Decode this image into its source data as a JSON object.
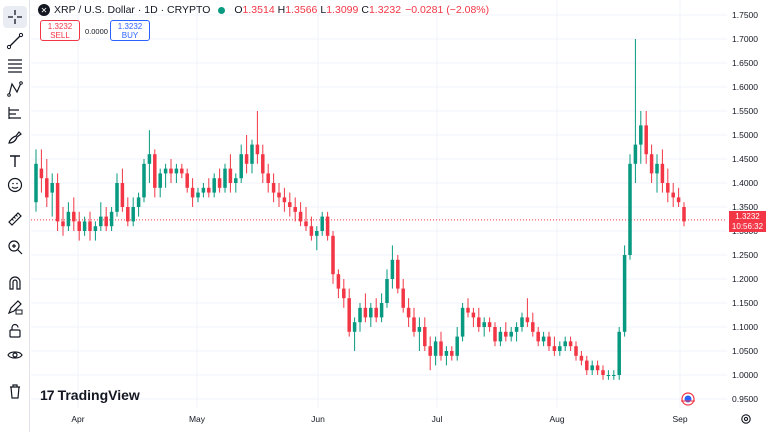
{
  "symbol": {
    "icon": "xrp-icon",
    "title": "XRP / U.S. Dollar · 1D · CRYPTO",
    "market_status": "open"
  },
  "ohlc": {
    "open_label": "O",
    "open": "1.3514",
    "high_label": "H",
    "high": "1.3566",
    "low_label": "L",
    "low": "1.3099",
    "close_label": "C",
    "close": "1.3232",
    "change": "−0.0281 (−2.08%)"
  },
  "trade": {
    "sell_price": "1.3232",
    "sell_label": "SELL",
    "spread": "0.0000",
    "buy_price": "1.3232",
    "buy_label": "BUY"
  },
  "price_tag": {
    "price": "1.3232",
    "countdown": "10:56:32"
  },
  "branding": {
    "name": "TradingView"
  },
  "colors": {
    "up": "#089981",
    "down": "#f23645",
    "grid": "#f0f3fa",
    "last_price_line": "#f23645"
  },
  "toolbar": [
    "crosshair-icon",
    "trend-line-icon",
    "fib-icon",
    "pattern-icon",
    "measure-lines-icon",
    "brush-icon",
    "text-icon",
    "emoji-icon",
    "ruler-icon",
    "zoom-in-icon",
    "magnet-icon",
    "lock-pencil-icon",
    "lock-icon",
    "eye-icon",
    "trash-icon"
  ],
  "chart_data": {
    "type": "candlestick",
    "y_ticks": [
      "1.7500",
      "1.7000",
      "1.6500",
      "1.6000",
      "1.5500",
      "1.5000",
      "1.4500",
      "1.4000",
      "1.3500",
      "1.3000",
      "1.2500",
      "1.2000",
      "1.1500",
      "1.1000",
      "1.0500",
      "1.0000",
      "0.9500"
    ],
    "x_ticks": [
      "Apr",
      "May",
      "Jun",
      "Jul",
      "Aug",
      "Sep"
    ],
    "ylim": [
      0.94,
      1.76
    ],
    "last_price": 1.3232,
    "grid": true,
    "candles": [
      {
        "o": 1.36,
        "h": 1.47,
        "l": 1.34,
        "c": 1.44
      },
      {
        "o": 1.43,
        "h": 1.47,
        "l": 1.38,
        "c": 1.41
      },
      {
        "o": 1.41,
        "h": 1.45,
        "l": 1.35,
        "c": 1.37
      },
      {
        "o": 1.38,
        "h": 1.42,
        "l": 1.33,
        "c": 1.4
      },
      {
        "o": 1.4,
        "h": 1.42,
        "l": 1.3,
        "c": 1.32
      },
      {
        "o": 1.32,
        "h": 1.35,
        "l": 1.29,
        "c": 1.31
      },
      {
        "o": 1.31,
        "h": 1.36,
        "l": 1.3,
        "c": 1.34
      },
      {
        "o": 1.34,
        "h": 1.37,
        "l": 1.3,
        "c": 1.32
      },
      {
        "o": 1.32,
        "h": 1.34,
        "l": 1.28,
        "c": 1.3
      },
      {
        "o": 1.3,
        "h": 1.33,
        "l": 1.29,
        "c": 1.32
      },
      {
        "o": 1.32,
        "h": 1.34,
        "l": 1.28,
        "c": 1.3
      },
      {
        "o": 1.3,
        "h": 1.32,
        "l": 1.28,
        "c": 1.31
      },
      {
        "o": 1.31,
        "h": 1.36,
        "l": 1.3,
        "c": 1.33
      },
      {
        "o": 1.33,
        "h": 1.35,
        "l": 1.3,
        "c": 1.31
      },
      {
        "o": 1.31,
        "h": 1.35,
        "l": 1.3,
        "c": 1.34
      },
      {
        "o": 1.34,
        "h": 1.42,
        "l": 1.33,
        "c": 1.4
      },
      {
        "o": 1.4,
        "h": 1.43,
        "l": 1.34,
        "c": 1.35
      },
      {
        "o": 1.35,
        "h": 1.37,
        "l": 1.31,
        "c": 1.32
      },
      {
        "o": 1.32,
        "h": 1.37,
        "l": 1.31,
        "c": 1.35
      },
      {
        "o": 1.35,
        "h": 1.38,
        "l": 1.33,
        "c": 1.37
      },
      {
        "o": 1.37,
        "h": 1.45,
        "l": 1.36,
        "c": 1.44
      },
      {
        "o": 1.44,
        "h": 1.51,
        "l": 1.4,
        "c": 1.46
      },
      {
        "o": 1.46,
        "h": 1.47,
        "l": 1.37,
        "c": 1.39
      },
      {
        "o": 1.39,
        "h": 1.43,
        "l": 1.37,
        "c": 1.42
      },
      {
        "o": 1.42,
        "h": 1.44,
        "l": 1.39,
        "c": 1.43
      },
      {
        "o": 1.43,
        "h": 1.45,
        "l": 1.4,
        "c": 1.42
      },
      {
        "o": 1.42,
        "h": 1.44,
        "l": 1.4,
        "c": 1.43
      },
      {
        "o": 1.43,
        "h": 1.44,
        "l": 1.41,
        "c": 1.42
      },
      {
        "o": 1.42,
        "h": 1.43,
        "l": 1.38,
        "c": 1.39
      },
      {
        "o": 1.39,
        "h": 1.41,
        "l": 1.35,
        "c": 1.37
      },
      {
        "o": 1.37,
        "h": 1.39,
        "l": 1.36,
        "c": 1.38
      },
      {
        "o": 1.38,
        "h": 1.4,
        "l": 1.37,
        "c": 1.39
      },
      {
        "o": 1.39,
        "h": 1.41,
        "l": 1.37,
        "c": 1.38
      },
      {
        "o": 1.38,
        "h": 1.42,
        "l": 1.37,
        "c": 1.41
      },
      {
        "o": 1.41,
        "h": 1.43,
        "l": 1.38,
        "c": 1.39
      },
      {
        "o": 1.39,
        "h": 1.44,
        "l": 1.38,
        "c": 1.43
      },
      {
        "o": 1.43,
        "h": 1.46,
        "l": 1.38,
        "c": 1.4
      },
      {
        "o": 1.4,
        "h": 1.42,
        "l": 1.38,
        "c": 1.41
      },
      {
        "o": 1.41,
        "h": 1.48,
        "l": 1.4,
        "c": 1.46
      },
      {
        "o": 1.46,
        "h": 1.5,
        "l": 1.42,
        "c": 1.44
      },
      {
        "o": 1.44,
        "h": 1.49,
        "l": 1.42,
        "c": 1.48
      },
      {
        "o": 1.48,
        "h": 1.55,
        "l": 1.44,
        "c": 1.46
      },
      {
        "o": 1.46,
        "h": 1.48,
        "l": 1.4,
        "c": 1.42
      },
      {
        "o": 1.42,
        "h": 1.44,
        "l": 1.38,
        "c": 1.4
      },
      {
        "o": 1.4,
        "h": 1.42,
        "l": 1.36,
        "c": 1.38
      },
      {
        "o": 1.38,
        "h": 1.4,
        "l": 1.35,
        "c": 1.37
      },
      {
        "o": 1.37,
        "h": 1.39,
        "l": 1.34,
        "c": 1.36
      },
      {
        "o": 1.36,
        "h": 1.38,
        "l": 1.33,
        "c": 1.35
      },
      {
        "o": 1.35,
        "h": 1.37,
        "l": 1.32,
        "c": 1.34
      },
      {
        "o": 1.34,
        "h": 1.36,
        "l": 1.31,
        "c": 1.32
      },
      {
        "o": 1.32,
        "h": 1.35,
        "l": 1.3,
        "c": 1.31
      },
      {
        "o": 1.31,
        "h": 1.33,
        "l": 1.28,
        "c": 1.29
      },
      {
        "o": 1.29,
        "h": 1.31,
        "l": 1.26,
        "c": 1.3
      },
      {
        "o": 1.3,
        "h": 1.34,
        "l": 1.29,
        "c": 1.33
      },
      {
        "o": 1.33,
        "h": 1.34,
        "l": 1.28,
        "c": 1.29
      },
      {
        "o": 1.29,
        "h": 1.3,
        "l": 1.19,
        "c": 1.21
      },
      {
        "o": 1.21,
        "h": 1.22,
        "l": 1.16,
        "c": 1.18
      },
      {
        "o": 1.18,
        "h": 1.2,
        "l": 1.14,
        "c": 1.16
      },
      {
        "o": 1.16,
        "h": 1.18,
        "l": 1.08,
        "c": 1.09
      },
      {
        "o": 1.09,
        "h": 1.12,
        "l": 1.05,
        "c": 1.11
      },
      {
        "o": 1.11,
        "h": 1.15,
        "l": 1.09,
        "c": 1.14
      },
      {
        "o": 1.14,
        "h": 1.17,
        "l": 1.11,
        "c": 1.12
      },
      {
        "o": 1.12,
        "h": 1.15,
        "l": 1.1,
        "c": 1.14
      },
      {
        "o": 1.14,
        "h": 1.16,
        "l": 1.11,
        "c": 1.12
      },
      {
        "o": 1.12,
        "h": 1.17,
        "l": 1.11,
        "c": 1.15
      },
      {
        "o": 1.15,
        "h": 1.22,
        "l": 1.14,
        "c": 1.2
      },
      {
        "o": 1.2,
        "h": 1.27,
        "l": 1.18,
        "c": 1.24
      },
      {
        "o": 1.24,
        "h": 1.25,
        "l": 1.17,
        "c": 1.18
      },
      {
        "o": 1.18,
        "h": 1.2,
        "l": 1.13,
        "c": 1.14
      },
      {
        "o": 1.14,
        "h": 1.16,
        "l": 1.1,
        "c": 1.12
      },
      {
        "o": 1.12,
        "h": 1.14,
        "l": 1.08,
        "c": 1.09
      },
      {
        "o": 1.09,
        "h": 1.12,
        "l": 1.05,
        "c": 1.1
      },
      {
        "o": 1.1,
        "h": 1.12,
        "l": 1.05,
        "c": 1.06
      },
      {
        "o": 1.06,
        "h": 1.08,
        "l": 1.01,
        "c": 1.04
      },
      {
        "o": 1.04,
        "h": 1.08,
        "l": 1.02,
        "c": 1.07
      },
      {
        "o": 1.07,
        "h": 1.09,
        "l": 1.03,
        "c": 1.04
      },
      {
        "o": 1.04,
        "h": 1.06,
        "l": 1.02,
        "c": 1.05
      },
      {
        "o": 1.05,
        "h": 1.06,
        "l": 1.03,
        "c": 1.04
      },
      {
        "o": 1.04,
        "h": 1.1,
        "l": 1.03,
        "c": 1.08
      },
      {
        "o": 1.08,
        "h": 1.15,
        "l": 1.07,
        "c": 1.14
      },
      {
        "o": 1.14,
        "h": 1.16,
        "l": 1.12,
        "c": 1.13
      },
      {
        "o": 1.13,
        "h": 1.14,
        "l": 1.1,
        "c": 1.12
      },
      {
        "o": 1.12,
        "h": 1.14,
        "l": 1.09,
        "c": 1.1
      },
      {
        "o": 1.1,
        "h": 1.12,
        "l": 1.08,
        "c": 1.11
      },
      {
        "o": 1.11,
        "h": 1.12,
        "l": 1.09,
        "c": 1.1
      },
      {
        "o": 1.1,
        "h": 1.11,
        "l": 1.06,
        "c": 1.07
      },
      {
        "o": 1.07,
        "h": 1.1,
        "l": 1.06,
        "c": 1.09
      },
      {
        "o": 1.09,
        "h": 1.11,
        "l": 1.07,
        "c": 1.08
      },
      {
        "o": 1.08,
        "h": 1.1,
        "l": 1.07,
        "c": 1.09
      },
      {
        "o": 1.09,
        "h": 1.11,
        "l": 1.07,
        "c": 1.1
      },
      {
        "o": 1.1,
        "h": 1.13,
        "l": 1.09,
        "c": 1.12
      },
      {
        "o": 1.12,
        "h": 1.16,
        "l": 1.1,
        "c": 1.11
      },
      {
        "o": 1.11,
        "h": 1.13,
        "l": 1.08,
        "c": 1.09
      },
      {
        "o": 1.09,
        "h": 1.1,
        "l": 1.06,
        "c": 1.07
      },
      {
        "o": 1.07,
        "h": 1.09,
        "l": 1.06,
        "c": 1.08
      },
      {
        "o": 1.08,
        "h": 1.09,
        "l": 1.05,
        "c": 1.06
      },
      {
        "o": 1.06,
        "h": 1.08,
        "l": 1.04,
        "c": 1.05
      },
      {
        "o": 1.05,
        "h": 1.07,
        "l": 1.04,
        "c": 1.06
      },
      {
        "o": 1.06,
        "h": 1.08,
        "l": 1.05,
        "c": 1.07
      },
      {
        "o": 1.07,
        "h": 1.08,
        "l": 1.05,
        "c": 1.06
      },
      {
        "o": 1.06,
        "h": 1.07,
        "l": 1.03,
        "c": 1.04
      },
      {
        "o": 1.04,
        "h": 1.05,
        "l": 1.02,
        "c": 1.03
      },
      {
        "o": 1.03,
        "h": 1.04,
        "l": 1.0,
        "c": 1.01
      },
      {
        "o": 1.01,
        "h": 1.03,
        "l": 1.0,
        "c": 1.02
      },
      {
        "o": 1.02,
        "h": 1.03,
        "l": 1.0,
        "c": 1.01
      },
      {
        "o": 1.01,
        "h": 1.02,
        "l": 0.99,
        "c": 1.0
      },
      {
        "o": 1.0,
        "h": 1.01,
        "l": 0.99,
        "c": 1.0
      },
      {
        "o": 1.0,
        "h": 1.01,
        "l": 0.99,
        "c": 1.0
      },
      {
        "o": 1.0,
        "h": 1.1,
        "l": 0.99,
        "c": 1.09
      },
      {
        "o": 1.09,
        "h": 1.27,
        "l": 1.08,
        "c": 1.25
      },
      {
        "o": 1.25,
        "h": 1.46,
        "l": 1.24,
        "c": 1.44
      },
      {
        "o": 1.44,
        "h": 1.7,
        "l": 1.4,
        "c": 1.48
      },
      {
        "o": 1.48,
        "h": 1.55,
        "l": 1.44,
        "c": 1.52
      },
      {
        "o": 1.52,
        "h": 1.55,
        "l": 1.44,
        "c": 1.46
      },
      {
        "o": 1.46,
        "h": 1.48,
        "l": 1.4,
        "c": 1.42
      },
      {
        "o": 1.42,
        "h": 1.46,
        "l": 1.38,
        "c": 1.44
      },
      {
        "o": 1.44,
        "h": 1.47,
        "l": 1.38,
        "c": 1.4
      },
      {
        "o": 1.4,
        "h": 1.43,
        "l": 1.36,
        "c": 1.38
      },
      {
        "o": 1.38,
        "h": 1.4,
        "l": 1.35,
        "c": 1.37
      },
      {
        "o": 1.37,
        "h": 1.39,
        "l": 1.35,
        "c": 1.36
      },
      {
        "o": 1.35,
        "h": 1.36,
        "l": 1.31,
        "c": 1.32
      }
    ]
  }
}
